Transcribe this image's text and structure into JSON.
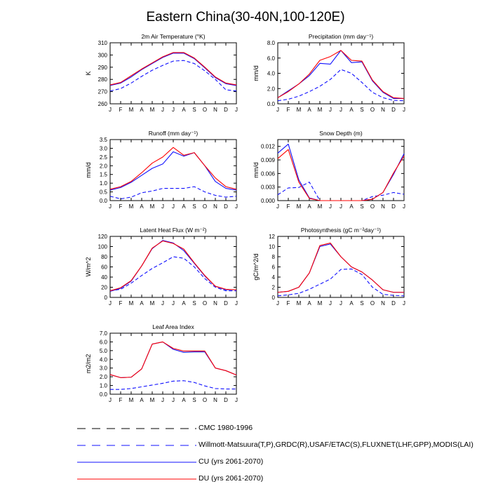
{
  "figure_title": "Eastern China(30-40N,100-120E)",
  "colors": {
    "cu": "#1010ff",
    "du": "#ff0000",
    "obs": "#1010ff",
    "axis": "#000000"
  },
  "legend": [
    {
      "label": "CMC 1980-1996",
      "style": "long-dash",
      "color": "#000000"
    },
    {
      "label": "Willmott-Matsuura(T,P),GRDC(R),USAF/ETAC(S),FLUXNET(LHF,GPP),MODIS(LAI)",
      "style": "dash",
      "color": "#1010ff"
    },
    {
      "label": "CU (yrs 2061-2070)",
      "style": "solid",
      "color": "#1010ff"
    },
    {
      "label": "DU (yrs 2061-2070)",
      "style": "solid",
      "color": "#ff0000"
    }
  ],
  "chart_data": [
    {
      "type": "line",
      "title": "2m Air Temperature (°K)",
      "ylabel": "K",
      "categories": [
        "J",
        "F",
        "M",
        "A",
        "M",
        "J",
        "J",
        "A",
        "S",
        "O",
        "N",
        "D",
        "J"
      ],
      "ylim": [
        260,
        310
      ],
      "yticks": [
        260,
        270,
        280,
        290,
        300,
        310
      ],
      "ytick_labels": [
        "260",
        "270",
        "280",
        "290",
        "300",
        "310"
      ],
      "series": [
        {
          "name": "Willmott-Matsuura",
          "style": "dash",
          "values": [
            270.5,
            272.5,
            277,
            282.5,
            287.5,
            291.5,
            295,
            295.5,
            293,
            287,
            280,
            271.5,
            270.5
          ]
        },
        {
          "name": "CU (yrs 2061-2070)",
          "style": "solid-blue",
          "values": [
            275,
            277,
            282,
            288,
            293,
            298,
            301.5,
            301.5,
            297,
            289.5,
            281.5,
            276.5,
            275
          ]
        },
        {
          "name": "DU (yrs 2061-2070)",
          "style": "solid-red",
          "values": [
            275.5,
            277.5,
            283,
            288.5,
            293.5,
            298.5,
            302,
            302,
            297.5,
            290,
            282,
            277,
            275.5
          ]
        }
      ]
    },
    {
      "type": "line",
      "title": "Precipitation (mm day⁻¹)",
      "ylabel": "mm/d",
      "categories": [
        "J",
        "F",
        "M",
        "A",
        "M",
        "J",
        "J",
        "A",
        "S",
        "O",
        "N",
        "D",
        "J"
      ],
      "ylim": [
        0,
        8
      ],
      "yticks": [
        0,
        2,
        4,
        6,
        8
      ],
      "ytick_labels": [
        "0.0",
        "2.0",
        "4.0",
        "6.0",
        "8.0"
      ],
      "series": [
        {
          "name": "Willmott-Matsuura",
          "style": "dash",
          "values": [
            0.4,
            0.6,
            1.0,
            1.6,
            2.3,
            3.2,
            4.5,
            4.0,
            2.8,
            1.5,
            0.8,
            0.45,
            0.4
          ]
        },
        {
          "name": "CU (yrs 2061-2070)",
          "style": "solid-blue",
          "values": [
            0.8,
            1.7,
            2.6,
            3.7,
            5.3,
            5.2,
            7.0,
            5.4,
            5.5,
            3.0,
            1.5,
            0.7,
            0.7
          ]
        },
        {
          "name": "DU (yrs 2061-2070)",
          "style": "solid-red",
          "values": [
            0.8,
            1.6,
            2.6,
            3.9,
            5.7,
            6.2,
            7.0,
            5.7,
            5.6,
            3.1,
            1.6,
            0.8,
            0.7
          ]
        }
      ]
    },
    {
      "type": "line",
      "title": "Runoff (mm day⁻¹)",
      "ylabel": "mm/d",
      "categories": [
        "J",
        "F",
        "M",
        "A",
        "M",
        "J",
        "J",
        "A",
        "S",
        "O",
        "N",
        "D",
        "J"
      ],
      "ylim": [
        0,
        3.5
      ],
      "yticks": [
        0,
        0.5,
        1.0,
        1.5,
        2.0,
        2.5,
        3.0,
        3.5
      ],
      "ytick_labels": [
        "0.0",
        "0.5",
        "1.0",
        "1.5",
        "2.0",
        "2.5",
        "3.0",
        "3.5"
      ],
      "series": [
        {
          "name": "GRDC",
          "style": "dash",
          "values": [
            0.25,
            0.1,
            0.2,
            0.45,
            0.55,
            0.7,
            0.7,
            0.7,
            0.8,
            0.5,
            0.3,
            0.2,
            0.25
          ]
        },
        {
          "name": "CU (yrs 2061-2070)",
          "style": "solid-blue",
          "values": [
            0.6,
            0.75,
            1.05,
            1.45,
            1.85,
            2.1,
            2.8,
            2.55,
            2.75,
            2.0,
            1.1,
            0.7,
            0.6
          ]
        },
        {
          "name": "DU (yrs 2061-2070)",
          "style": "solid-red",
          "values": [
            0.65,
            0.8,
            1.1,
            1.6,
            2.15,
            2.5,
            3.05,
            2.6,
            2.75,
            2.0,
            1.3,
            0.8,
            0.65
          ]
        }
      ]
    },
    {
      "type": "line",
      "title": "Snow Depth (m)",
      "ylabel": "mm/d",
      "categories": [
        "J",
        "F",
        "M",
        "A",
        "M",
        "J",
        "J",
        "A",
        "S",
        "O",
        "N",
        "D",
        "J"
      ],
      "ylim": [
        0,
        0.0135
      ],
      "yticks": [
        0,
        0.003,
        0.006,
        0.009,
        0.012
      ],
      "ytick_labels": [
        "0.000",
        "0.003",
        "0.006",
        "0.009",
        "0.012"
      ],
      "series": [
        {
          "name": "USAF/ETAC",
          "style": "dash",
          "values": [
            0.0013,
            0.0028,
            0.0029,
            0.0041,
            0.0,
            0.0,
            0.0,
            0.0,
            0.0,
            0.0009,
            0.0012,
            0.0018,
            0.0014
          ]
        },
        {
          "name": "CU (yrs 2061-2070)",
          "style": "solid-blue",
          "values": [
            0.0105,
            0.0125,
            0.0046,
            0.0006,
            0.0,
            0.0,
            0.0,
            0.0,
            0.0,
            0.0003,
            0.0018,
            0.0058,
            0.0104
          ]
        },
        {
          "name": "DU (yrs 2061-2070)",
          "style": "solid-red",
          "values": [
            0.0093,
            0.0113,
            0.0041,
            0.0005,
            0.0,
            0.0,
            0.0,
            0.0,
            0.0,
            0.0003,
            0.0018,
            0.0061,
            0.0099
          ]
        }
      ]
    },
    {
      "type": "line",
      "title": "Latent Heat Flux (W m⁻²)",
      "ylabel": "W/m^2",
      "categories": [
        "J",
        "F",
        "M",
        "A",
        "M",
        "J",
        "J",
        "A",
        "S",
        "O",
        "N",
        "D",
        "J"
      ],
      "ylim": [
        0,
        120
      ],
      "yticks": [
        0,
        20,
        40,
        60,
        80,
        100,
        120
      ],
      "ytick_labels": [
        "0",
        "20",
        "40",
        "60",
        "80",
        "100",
        "120"
      ],
      "series": [
        {
          "name": "FLUXNET",
          "style": "dash",
          "values": [
            13,
            16,
            28,
            43,
            57,
            68,
            80,
            77,
            60,
            37,
            20,
            13,
            13
          ]
        },
        {
          "name": "CU (yrs 2061-2070)",
          "style": "solid-blue",
          "values": [
            12,
            18,
            32,
            62,
            96,
            112,
            107,
            92,
            67,
            42,
            22,
            15,
            15
          ]
        },
        {
          "name": "DU (yrs 2061-2070)",
          "style": "solid-red",
          "values": [
            13,
            19,
            33,
            62,
            97,
            111,
            106,
            95,
            68,
            43,
            22,
            16,
            15
          ]
        }
      ]
    },
    {
      "type": "line",
      "title": "Photosynthesis (gC m⁻²day⁻¹)",
      "ylabel": "gC/m^2/d",
      "categories": [
        "J",
        "F",
        "M",
        "A",
        "M",
        "J",
        "J",
        "A",
        "S",
        "O",
        "N",
        "D",
        "J"
      ],
      "ylim": [
        0,
        12
      ],
      "yticks": [
        0,
        2,
        4,
        6,
        8,
        10,
        12
      ],
      "ytick_labels": [
        "0",
        "2",
        "4",
        "6",
        "8",
        "10",
        "12"
      ],
      "series": [
        {
          "name": "FLUXNET",
          "style": "dash",
          "values": [
            0.3,
            0.5,
            0.8,
            1.6,
            2.6,
            3.6,
            5.5,
            5.6,
            4.5,
            2.0,
            0.6,
            0.4,
            0.3
          ]
        },
        {
          "name": "CU (yrs 2061-2070)",
          "style": "solid-blue",
          "values": [
            1.0,
            1.2,
            2.0,
            4.8,
            10.0,
            10.5,
            8.0,
            6.0,
            5.0,
            3.4,
            1.5,
            1.0,
            1.0
          ]
        },
        {
          "name": "DU (yrs 2061-2070)",
          "style": "solid-red",
          "values": [
            1.0,
            1.2,
            2.0,
            4.8,
            10.2,
            10.7,
            8.0,
            6.0,
            5.0,
            3.4,
            1.5,
            1.0,
            1.0
          ]
        }
      ]
    },
    {
      "type": "line",
      "title": "Leaf Area Index",
      "ylabel": "m2/m2",
      "categories": [
        "J",
        "F",
        "M",
        "A",
        "M",
        "J",
        "J",
        "A",
        "S",
        "O",
        "N",
        "D",
        "J"
      ],
      "ylim": [
        0,
        7
      ],
      "yticks": [
        0,
        1,
        2,
        3,
        4,
        5,
        6,
        7
      ],
      "ytick_labels": [
        "0.0",
        "1.0",
        "2.0",
        "3.0",
        "4.0",
        "5.0",
        "6.0",
        "7.0"
      ],
      "series": [
        {
          "name": "MODIS",
          "style": "dash",
          "values": [
            0.55,
            0.55,
            0.65,
            0.85,
            1.05,
            1.25,
            1.5,
            1.55,
            1.35,
            0.95,
            0.65,
            0.6,
            0.6
          ]
        },
        {
          "name": "CU (yrs 2061-2070)",
          "style": "solid-blue",
          "values": [
            2.25,
            1.9,
            1.95,
            2.9,
            5.75,
            6.0,
            5.15,
            4.8,
            4.85,
            4.85,
            3.0,
            2.7,
            2.2
          ]
        },
        {
          "name": "DU (yrs 2061-2070)",
          "style": "solid-red",
          "values": [
            2.25,
            1.9,
            1.95,
            2.9,
            5.75,
            6.0,
            5.25,
            4.95,
            4.95,
            4.95,
            3.0,
            2.7,
            2.2
          ]
        }
      ]
    }
  ]
}
